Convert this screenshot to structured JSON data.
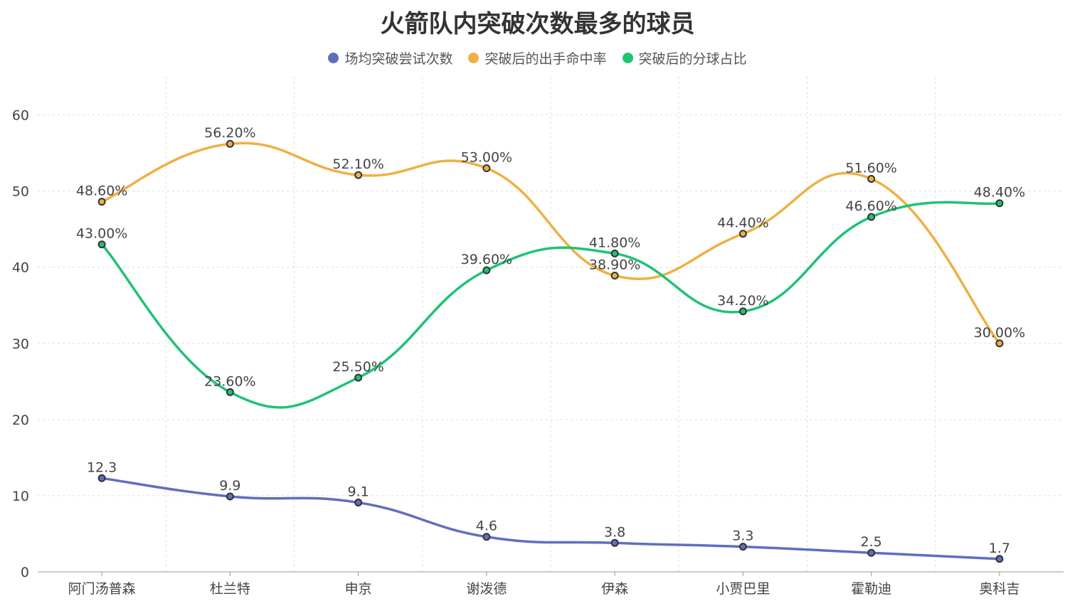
{
  "chart_data": {
    "type": "line",
    "title": "火箭队内突破次数最多的球员",
    "categories": [
      "阿门汤普森",
      "杜兰特",
      "申京",
      "谢泼德",
      "伊森",
      "小贾巴里",
      "霍勒迪",
      "奥科吉"
    ],
    "ylim": [
      0,
      65
    ],
    "yticks": [
      0,
      10,
      20,
      30,
      40,
      50,
      60
    ],
    "grid": true,
    "legend_position": "top-center",
    "series": [
      {
        "name": "场均突破尝试次数",
        "color": "#5f6fbf",
        "label_suffix": "",
        "decimals": 1,
        "values": [
          12.3,
          9.9,
          9.1,
          4.6,
          3.8,
          3.3,
          2.5,
          1.7
        ]
      },
      {
        "name": "突破后的出手命中率",
        "color": "#efb043",
        "label_suffix": "%",
        "decimals": 2,
        "values": [
          48.6,
          56.2,
          52.1,
          53.0,
          38.9,
          44.4,
          51.6,
          30.0
        ]
      },
      {
        "name": "突破后的分球占比",
        "color": "#1ec376",
        "label_suffix": "%",
        "decimals": 2,
        "values": [
          43.0,
          23.6,
          25.5,
          39.6,
          41.8,
          34.2,
          46.6,
          48.4
        ]
      }
    ]
  }
}
